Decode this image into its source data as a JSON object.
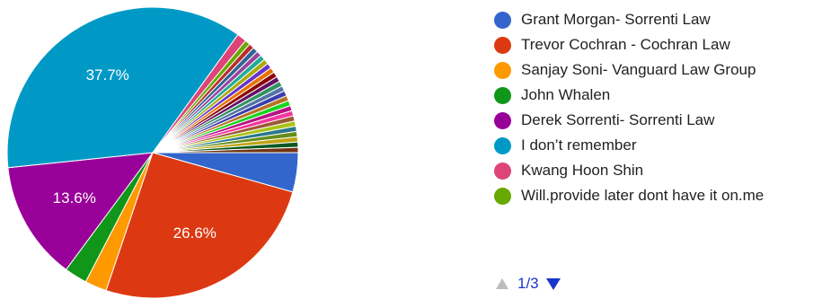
{
  "chart_data": {
    "type": "pie",
    "slices": [
      {
        "label": "Grant Morgan- Sorrenti Law",
        "value": 4.5,
        "color": "#3366cc",
        "data_label": ""
      },
      {
        "label": "Trevor Cochran - Cochran Law",
        "value": 26.6,
        "color": "#dc3912",
        "data_label": "26.6%"
      },
      {
        "label": "Sanjay Soni- Vanguard Law Group",
        "value": 2.5,
        "color": "#ff9900",
        "data_label": ""
      },
      {
        "label": "John Whalen",
        "value": 2.6,
        "color": "#109618",
        "data_label": ""
      },
      {
        "label": "Derek Sorrenti- Sorrenti Law",
        "value": 13.6,
        "color": "#990099",
        "data_label": "13.6%"
      },
      {
        "label": "I don’t remember",
        "value": 37.7,
        "color": "#0099c6",
        "data_label": "37.7%"
      },
      {
        "label": "Kwang Hoon Shin",
        "value": 1.1,
        "color": "#dd4477",
        "data_label": ""
      },
      {
        "label": "Will.provide later dont have it on.me",
        "value": 0.6,
        "color": "#66aa00",
        "data_label": ""
      },
      {
        "label": "",
        "value": 0.6,
        "color": "#b82e2e",
        "data_label": ""
      },
      {
        "label": "",
        "value": 0.6,
        "color": "#316395",
        "data_label": ""
      },
      {
        "label": "",
        "value": 0.6,
        "color": "#994499",
        "data_label": ""
      },
      {
        "label": "",
        "value": 0.6,
        "color": "#22aa99",
        "data_label": ""
      },
      {
        "label": "",
        "value": 0.6,
        "color": "#aaaa11",
        "data_label": ""
      },
      {
        "label": "",
        "value": 0.6,
        "color": "#6633cc",
        "data_label": ""
      },
      {
        "label": "",
        "value": 0.6,
        "color": "#e67300",
        "data_label": ""
      },
      {
        "label": "",
        "value": 0.6,
        "color": "#8b0707",
        "data_label": ""
      },
      {
        "label": "",
        "value": 0.6,
        "color": "#651067",
        "data_label": ""
      },
      {
        "label": "",
        "value": 0.6,
        "color": "#329262",
        "data_label": ""
      },
      {
        "label": "",
        "value": 0.6,
        "color": "#5574a6",
        "data_label": ""
      },
      {
        "label": "",
        "value": 0.6,
        "color": "#3b3eac",
        "data_label": ""
      },
      {
        "label": "",
        "value": 0.6,
        "color": "#b77322",
        "data_label": ""
      },
      {
        "label": "",
        "value": 0.6,
        "color": "#16d620",
        "data_label": ""
      },
      {
        "label": "",
        "value": 0.6,
        "color": "#b91383",
        "data_label": ""
      },
      {
        "label": "",
        "value": 0.6,
        "color": "#f4359e",
        "data_label": ""
      },
      {
        "label": "",
        "value": 0.6,
        "color": "#9c5935",
        "data_label": ""
      },
      {
        "label": "",
        "value": 0.6,
        "color": "#a9c413",
        "data_label": ""
      },
      {
        "label": "",
        "value": 0.6,
        "color": "#2a778d",
        "data_label": ""
      },
      {
        "label": "",
        "value": 0.6,
        "color": "#668d1c",
        "data_label": ""
      },
      {
        "label": "",
        "value": 0.6,
        "color": "#bea413",
        "data_label": ""
      },
      {
        "label": "",
        "value": 0.6,
        "color": "#0c5922",
        "data_label": ""
      },
      {
        "label": "",
        "value": 0.6,
        "color": "#743411",
        "data_label": ""
      }
    ],
    "legend_visible_count": 8,
    "legend_position": "right"
  },
  "pager": {
    "text": "1/3",
    "up_icon": "triangle-up-icon",
    "down_icon": "triangle-down-icon"
  }
}
